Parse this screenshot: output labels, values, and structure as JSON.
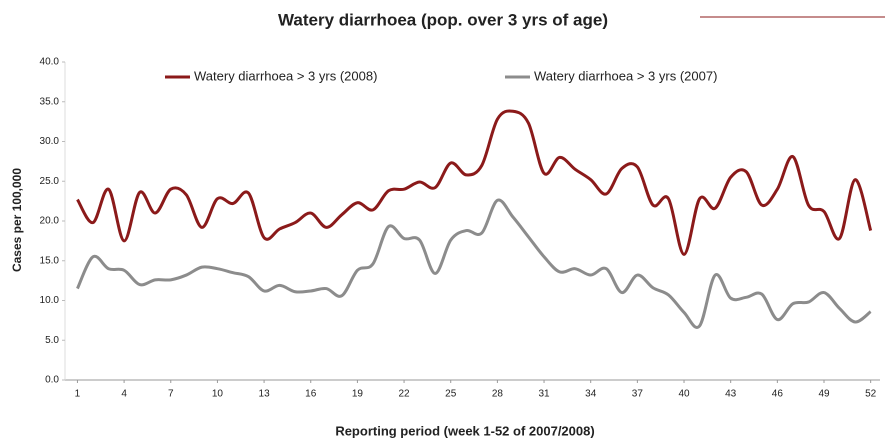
{
  "chart_data": {
    "type": "line",
    "title": "Watery diarrhoea (pop. over 3 yrs of age)",
    "x_label": "Reporting period (week 1-52 of 2007/2008)",
    "y_label": "Cases per 100,000",
    "x": [
      1,
      2,
      3,
      4,
      5,
      6,
      7,
      8,
      9,
      10,
      11,
      12,
      13,
      14,
      15,
      16,
      17,
      18,
      19,
      20,
      21,
      22,
      23,
      24,
      25,
      26,
      27,
      28,
      29,
      30,
      31,
      32,
      33,
      34,
      35,
      36,
      37,
      38,
      39,
      40,
      41,
      42,
      43,
      44,
      45,
      46,
      47,
      48,
      49,
      50,
      51,
      52
    ],
    "series": [
      {
        "name": "Watery diarrhoea > 3 yrs (2008)",
        "color": "#8b1a1a",
        "values": [
          22.7,
          19.8,
          24.0,
          17.5,
          23.6,
          21.0,
          24.0,
          23.3,
          19.2,
          22.8,
          22.2,
          23.5,
          17.9,
          19.0,
          19.8,
          21.0,
          19.2,
          20.8,
          22.3,
          21.4,
          23.8,
          24.0,
          24.9,
          24.2,
          27.3,
          25.8,
          27.0,
          32.8,
          33.8,
          32.3,
          26.0,
          28.0,
          26.5,
          25.2,
          23.4,
          26.6,
          26.8,
          22.0,
          22.8,
          15.8,
          22.8,
          21.6,
          25.5,
          26.2,
          22.0,
          24.0,
          28.1,
          22.0,
          21.2,
          17.8,
          25.2,
          18.8
        ]
      },
      {
        "name": "Watery diarrhoea  > 3 yrs (2007)",
        "color": "#8c8c8c",
        "values": [
          11.5,
          15.5,
          14.0,
          13.8,
          12.0,
          12.6,
          12.6,
          13.2,
          14.2,
          14.0,
          13.5,
          13.0,
          11.2,
          11.9,
          11.1,
          11.2,
          11.5,
          10.6,
          13.8,
          14.6,
          19.3,
          17.8,
          17.6,
          13.4,
          17.6,
          18.8,
          18.5,
          22.6,
          20.5,
          18.0,
          15.5,
          13.6,
          14.0,
          13.2,
          14.0,
          11.0,
          13.2,
          11.6,
          10.7,
          8.5,
          6.8,
          13.2,
          10.3,
          10.4,
          10.8,
          7.6,
          9.6,
          9.8,
          11.0,
          9.0,
          7.3,
          8.6
        ]
      }
    ],
    "xlim": [
      0.2,
      52.6
    ],
    "xticks": [
      1,
      4,
      7,
      10,
      13,
      16,
      19,
      22,
      25,
      28,
      31,
      34,
      37,
      40,
      43,
      46,
      49,
      52
    ],
    "ylim": [
      0,
      40
    ],
    "yticks": [
      {
        "value": 0,
        "label": "0.0"
      },
      {
        "value": 5,
        "label": "5.0"
      },
      {
        "value": 10,
        "label": "10.0"
      },
      {
        "value": 15,
        "label": "15.0"
      },
      {
        "value": 20,
        "label": "20.0"
      },
      {
        "value": 25,
        "label": "25.0"
      },
      {
        "value": 30,
        "label": "30.0"
      },
      {
        "value": 35,
        "label": "35.0"
      },
      {
        "value": 40,
        "label": "40.0"
      }
    ],
    "grid": false,
    "legend": "top"
  }
}
